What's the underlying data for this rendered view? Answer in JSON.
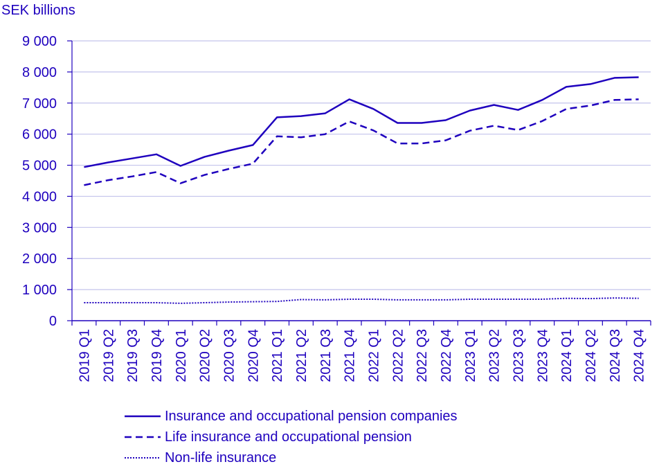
{
  "chart_data": {
    "type": "line",
    "ylabel": "SEK billions",
    "ylim": [
      0,
      9000
    ],
    "yticks": [
      0,
      1000,
      2000,
      3000,
      4000,
      5000,
      6000,
      7000,
      8000,
      9000
    ],
    "ytick_labels": [
      "0",
      "1 000",
      "2 000",
      "3 000",
      "4 000",
      "5 000",
      "6 000",
      "7 000",
      "8 000",
      "9 000"
    ],
    "grid": "horizontal",
    "legend_position": "bottom",
    "categories": [
      "2019 Q1",
      "2019 Q2",
      "2019 Q3",
      "2019 Q4",
      "2020 Q1",
      "2020 Q2",
      "2020 Q3",
      "2020 Q4",
      "2021 Q1",
      "2021 Q2",
      "2021 Q3",
      "2021 Q4",
      "2022 Q1",
      "2022 Q2",
      "2022 Q3",
      "2022 Q4",
      "2023 Q1",
      "2023 Q2",
      "2023 Q3",
      "2023 Q4",
      "2024 Q1",
      "2024 Q2",
      "2024 Q3",
      "2024 Q4"
    ],
    "series": [
      {
        "name": "Insurance and occupational pension companies",
        "style": "solid",
        "color": "#1e00be",
        "values": [
          4940,
          5090,
          5220,
          5350,
          4980,
          5270,
          5470,
          5650,
          6540,
          6580,
          6670,
          7120,
          6810,
          6360,
          6360,
          6450,
          6760,
          6940,
          6780,
          7100,
          7520,
          7610,
          7810,
          7830
        ]
      },
      {
        "name": "Life insurance and occupational pension",
        "style": "dashed",
        "color": "#1e00be",
        "values": [
          4360,
          4520,
          4640,
          4780,
          4420,
          4690,
          4880,
          5050,
          5930,
          5900,
          6000,
          6410,
          6120,
          5700,
          5700,
          5800,
          6110,
          6270,
          6130,
          6420,
          6810,
          6920,
          7100,
          7120
        ]
      },
      {
        "name": "Non-life insurance",
        "style": "dotted",
        "color": "#1e00be",
        "values": [
          580,
          580,
          580,
          580,
          560,
          580,
          600,
          610,
          620,
          680,
          670,
          690,
          690,
          670,
          670,
          670,
          690,
          690,
          690,
          690,
          720,
          710,
          730,
          720
        ]
      }
    ]
  }
}
